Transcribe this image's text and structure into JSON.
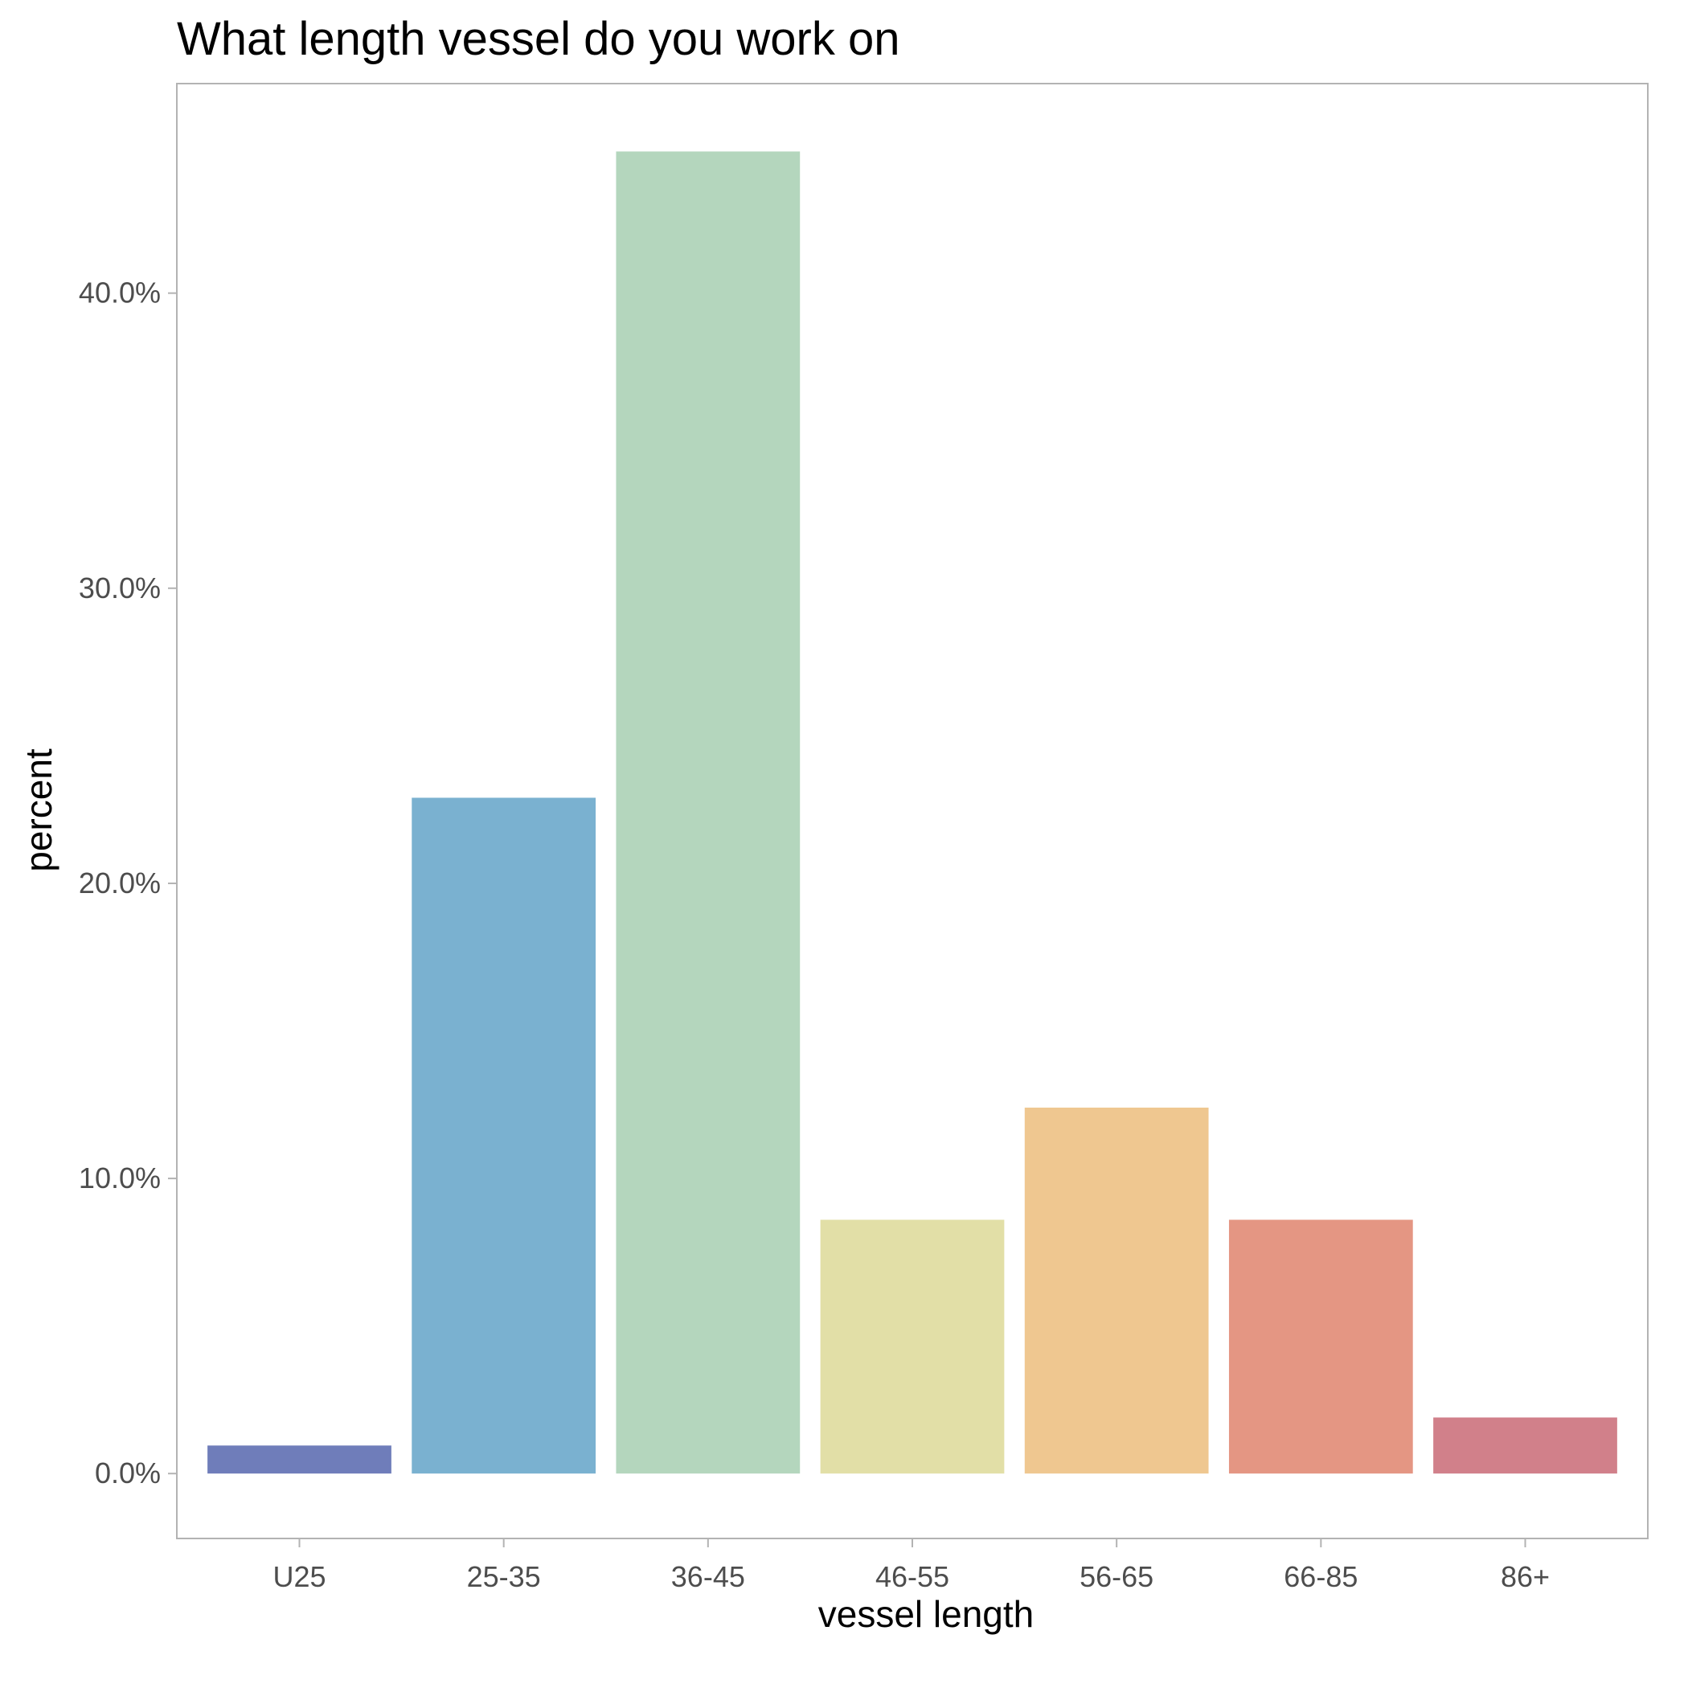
{
  "chart_data": {
    "type": "bar",
    "title": "What length vessel do you work on",
    "xlabel": "vessel length",
    "ylabel": "percent",
    "categories": [
      "U25",
      "25-35",
      "36-45",
      "46-55",
      "56-65",
      "66-85",
      "86+"
    ],
    "values": [
      0.95,
      22.9,
      44.8,
      8.6,
      12.4,
      8.6,
      1.9
    ],
    "colors": [
      "#6f7dba",
      "#7ab1d0",
      "#b4d6bd",
      "#e2dfa7",
      "#efc790",
      "#e49683",
      "#d1808a"
    ],
    "yticks": [
      0,
      10,
      20,
      30,
      40
    ],
    "ytick_labels": [
      "0.0%",
      "10.0%",
      "20.0%",
      "30.0%",
      "40.0%"
    ],
    "ylim": [
      -2.2,
      47.1
    ],
    "grid": false,
    "legend": "none"
  }
}
